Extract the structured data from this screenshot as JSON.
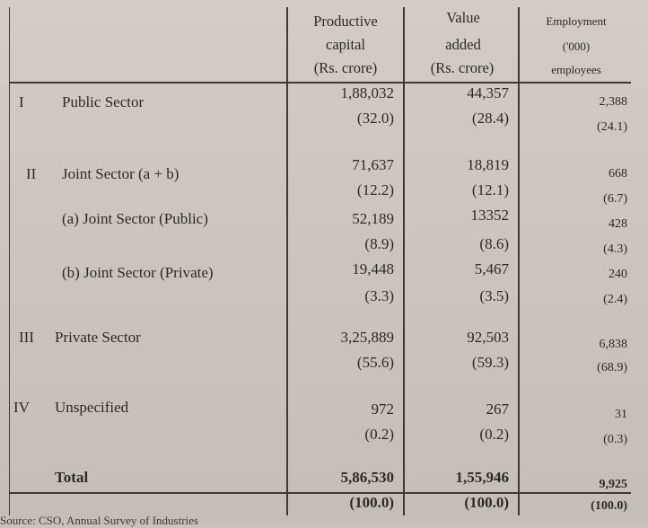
{
  "header": {
    "productive_capital": [
      "Productive",
      "capital",
      "(Rs. crore)"
    ],
    "value_added": [
      "Value",
      "added",
      "(Rs. crore)"
    ],
    "employment": [
      "Employment",
      "('000)",
      "employees"
    ]
  },
  "rows": [
    {
      "num": "I",
      "label": "Public Sector",
      "cap": "1,88,032",
      "cap_pct": "(32.0)",
      "val": "44,357",
      "val_pct": "(28.4)",
      "emp": "2,388",
      "emp_pct": "(24.1)"
    },
    {
      "num": "II",
      "label": "Joint Sector (a + b)",
      "cap": "71,637",
      "cap_pct": "(12.2)",
      "val": "18,819",
      "val_pct": "(12.1)",
      "emp": "668",
      "emp_pct": "(6.7)"
    },
    {
      "num": "",
      "label": "(a) Joint Sector (Public)",
      "cap": "52,189",
      "cap_pct": "(8.9)",
      "val": "13352",
      "val_pct": "(8.6)",
      "emp": "428",
      "emp_pct": "(4.3)"
    },
    {
      "num": "",
      "label": "(b) Joint Sector (Private)",
      "cap": "19,448",
      "cap_pct": "(3.3)",
      "val": "5,467",
      "val_pct": "(3.5)",
      "emp": "240",
      "emp_pct": "(2.4)"
    },
    {
      "num": "III",
      "label": "Private Sector",
      "cap": "3,25,889",
      "cap_pct": "(55.6)",
      "val": "92,503",
      "val_pct": "(59.3)",
      "emp": "6,838",
      "emp_pct": "(68.9)"
    },
    {
      "num": "IV",
      "label": "Unspecified",
      "cap": "972",
      "cap_pct": "(0.2)",
      "val": "267",
      "val_pct": "(0.2)",
      "emp": "31",
      "emp_pct": "(0.3)"
    }
  ],
  "total": {
    "label": "Total",
    "cap": "5,86,530",
    "cap_pct": "(100.0)",
    "val": "1,55,946",
    "val_pct": "(100.0)",
    "emp": "9,925",
    "emp_pct": "(100.0)"
  },
  "footer": "Source: CSO, Annual Survey of Industries"
}
